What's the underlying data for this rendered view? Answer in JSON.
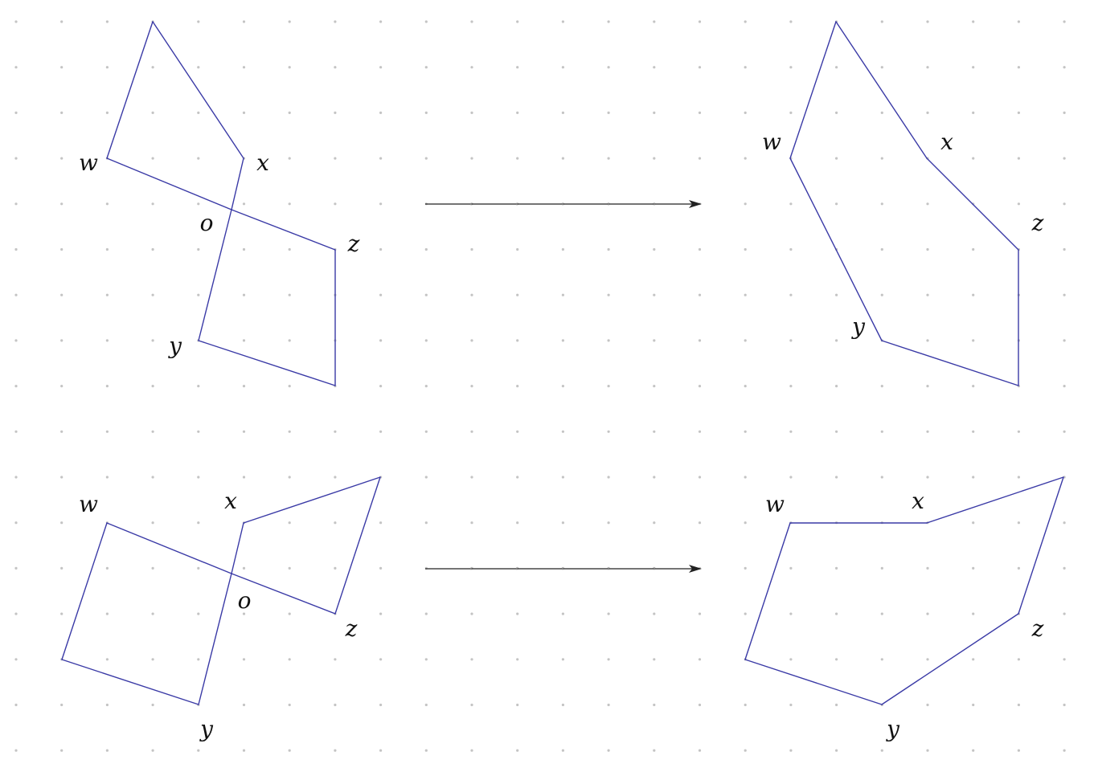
{
  "panels": [
    {
      "id": "top-left",
      "segments": [
        [
          "w",
          "o"
        ],
        [
          "o",
          "z"
        ],
        [
          "x",
          "o"
        ],
        [
          "o",
          "y"
        ],
        [
          "w",
          "top"
        ],
        [
          "top",
          "x"
        ],
        [
          "z",
          "bottom"
        ],
        [
          "bottom",
          "y"
        ]
      ],
      "labels": [
        {
          "key": "w",
          "text": "w"
        },
        {
          "key": "x",
          "text": "x"
        },
        {
          "key": "o",
          "text": "o"
        },
        {
          "key": "z",
          "text": "z"
        },
        {
          "key": "y",
          "text": "y"
        }
      ]
    },
    {
      "id": "top-right",
      "segments": [
        [
          "top",
          "x"
        ],
        [
          "x",
          "z"
        ],
        [
          "z",
          "bottom"
        ],
        [
          "bottom",
          "y"
        ],
        [
          "y",
          "w"
        ],
        [
          "w",
          "top"
        ]
      ],
      "labels": [
        {
          "key": "w",
          "text": "w"
        },
        {
          "key": "x",
          "text": "x"
        },
        {
          "key": "z",
          "text": "z"
        },
        {
          "key": "y",
          "text": "y"
        }
      ]
    },
    {
      "id": "bottom-left",
      "segments": [
        [
          "w",
          "o"
        ],
        [
          "o",
          "z"
        ],
        [
          "x",
          "o"
        ],
        [
          "o",
          "y"
        ],
        [
          "x",
          "tip"
        ],
        [
          "tip",
          "z"
        ],
        [
          "w",
          "far"
        ],
        [
          "far",
          "y"
        ]
      ],
      "labels": [
        {
          "key": "w",
          "text": "w"
        },
        {
          "key": "x",
          "text": "x"
        },
        {
          "key": "o",
          "text": "o"
        },
        {
          "key": "z",
          "text": "z"
        },
        {
          "key": "y",
          "text": "y"
        }
      ]
    },
    {
      "id": "bottom-right",
      "segments": [
        [
          "w",
          "x"
        ],
        [
          "x",
          "tip"
        ],
        [
          "tip",
          "z"
        ],
        [
          "z",
          "y"
        ],
        [
          "y",
          "far"
        ],
        [
          "far",
          "w"
        ]
      ],
      "labels": [
        {
          "key": "w",
          "text": "w"
        },
        {
          "key": "x",
          "text": "x"
        },
        {
          "key": "z",
          "text": "z"
        },
        {
          "key": "y",
          "text": "y"
        }
      ]
    }
  ],
  "arrows": [
    {
      "id": "top-arrow"
    },
    {
      "id": "bottom-arrow"
    }
  ]
}
